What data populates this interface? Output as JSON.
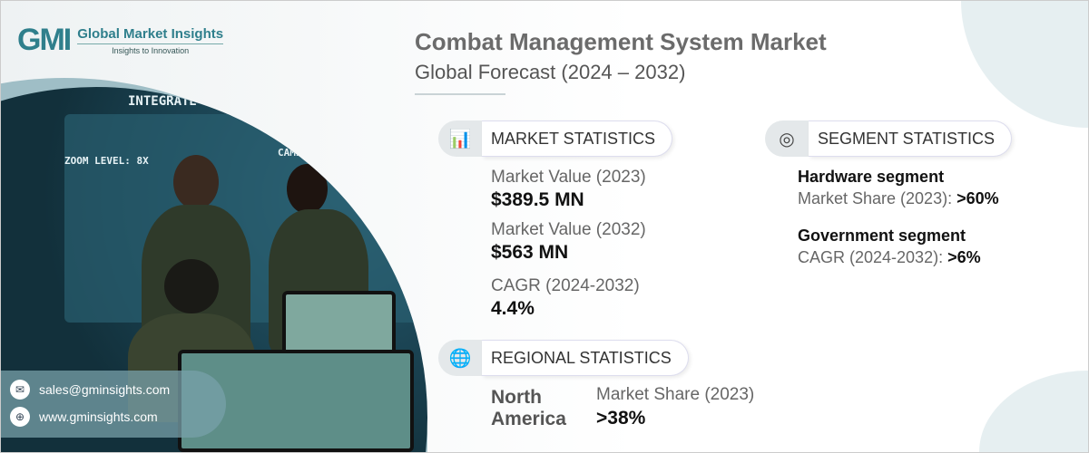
{
  "logo": {
    "mark": "GMI",
    "name": "Global Market Insights",
    "tagline": "Insights to Innovation"
  },
  "header": {
    "title": "Combat Management System Market",
    "subtitle": "Global Forecast (2024 – 2032)"
  },
  "photo_overlay": {
    "hud1": "INTEGRATE",
    "hud2": "ZOOM LEVEL: 8X",
    "hud3": "CAME"
  },
  "market": {
    "heading": "MARKET STATISTICS",
    "icon": "chart-globe-icon",
    "items": [
      {
        "label": "Market Value (2023)",
        "value": "$389.5 MN"
      },
      {
        "label": "Market Value (2032)",
        "value": "$563 MN"
      },
      {
        "label": "CAGR (2024-2032)",
        "value": "4.4%"
      }
    ]
  },
  "segment": {
    "heading": "SEGMENT STATISTICS",
    "icon": "target-chart-icon",
    "items": [
      {
        "title": "Hardware segment",
        "label": "Market Share (2023):",
        "value": ">60%"
      },
      {
        "title": "Government segment",
        "label": "CAGR (2024-2032):",
        "value": ">6%"
      }
    ]
  },
  "regional": {
    "heading": "REGIONAL STATISTICS",
    "icon": "globe-icon",
    "region": "North America",
    "label": "Market Share (2023)",
    "value": ">38%"
  },
  "contact": {
    "email": "sales@gminsights.com",
    "website": "www.gminsights.com"
  }
}
